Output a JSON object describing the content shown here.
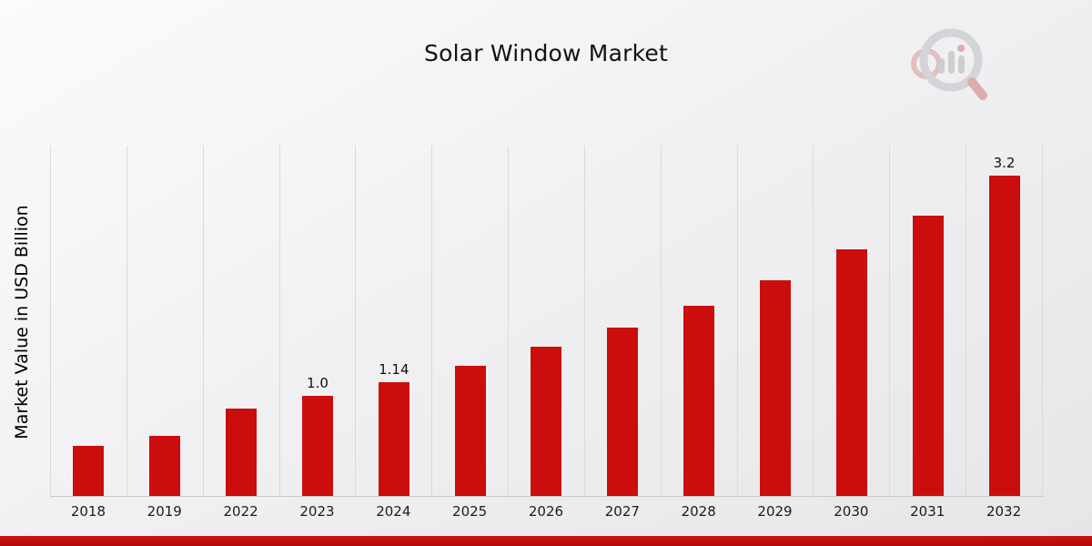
{
  "page": {
    "title": "Solar Window Market"
  },
  "branding": {
    "logo_icon": "magnifier-bar-chart-logo-icon",
    "accent_color": "#cb0d0e"
  },
  "chart_data": {
    "type": "bar",
    "title": "Solar Window Market",
    "xlabel": "",
    "ylabel": "Market Value in USD Billion",
    "ylim": [
      0,
      3.5
    ],
    "grid": "vertical",
    "legend": "none",
    "bar_color": "#cb0d0e",
    "categories": [
      "2018",
      "2019",
      "2022",
      "2023",
      "2024",
      "2025",
      "2026",
      "2027",
      "2028",
      "2029",
      "2030",
      "2031",
      "2032"
    ],
    "values": [
      0.5,
      0.6,
      0.87,
      1.0,
      1.14,
      1.3,
      1.49,
      1.68,
      1.9,
      2.15,
      2.46,
      2.8,
      3.2
    ],
    "data_labels": {
      "2023": "1.0",
      "2024": "1.14",
      "2032": "3.2"
    }
  }
}
